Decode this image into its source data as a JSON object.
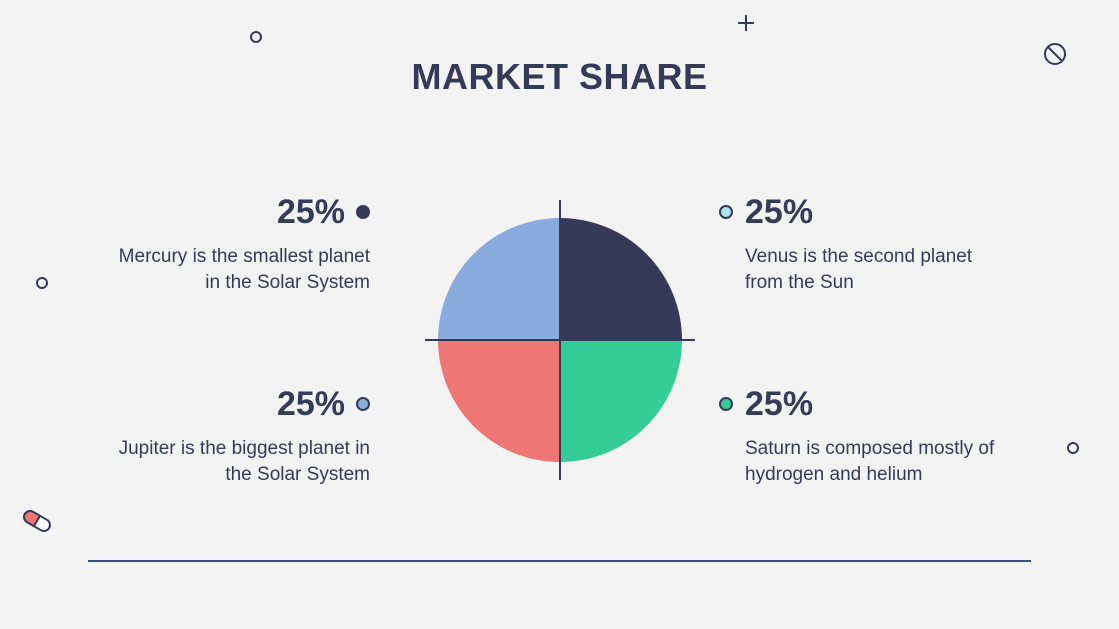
{
  "title": "MARKET SHARE",
  "chart_data": {
    "type": "pie",
    "title": "MARKET SHARE",
    "slices": [
      {
        "label": "Mercury",
        "value": 25,
        "display": "25%",
        "description": "Mercury is the smallest planet in the Solar System",
        "color": "#363a59"
      },
      {
        "label": "Venus",
        "value": 25,
        "display": "25%",
        "description": "Venus is the second planet from the Sun",
        "color": "#34cc97"
      },
      {
        "label": "Saturn",
        "value": 25,
        "display": "25%",
        "description": "Saturn is composed mostly of hydrogen and helium",
        "color": "#f07575"
      },
      {
        "label": "Jupiter",
        "value": 25,
        "display": "25%",
        "description": "Jupiter is the biggest planet in the Solar System",
        "color": "#8aabdd"
      }
    ]
  },
  "legend": {
    "mercury": {
      "value": "25%",
      "line1": "Mercury is the smallest planet",
      "line2": "in the Solar System",
      "dot_color": "#363a59"
    },
    "venus": {
      "value": "25%",
      "line1": "Venus is the second planet",
      "line2": "from the Sun",
      "dot_color": "#a8e4ec"
    },
    "jupiter": {
      "value": "25%",
      "line1": "Jupiter is the biggest planet in",
      "line2": "the Solar System",
      "dot_color": "#8aabdd"
    },
    "saturn": {
      "value": "25%",
      "line1": "Saturn is composed mostly of",
      "line2": "hydrogen and helium",
      "dot_color": "#34cc97"
    }
  },
  "colors": {
    "background": "#f3f3f3",
    "text": "#363a59",
    "axis": "#363a59",
    "baseline": "#3a4a8a",
    "pill_red": "#f07575"
  },
  "decorations": [
    "plus-icon",
    "ring-icon",
    "prohibited-icon",
    "pill-icon"
  ]
}
